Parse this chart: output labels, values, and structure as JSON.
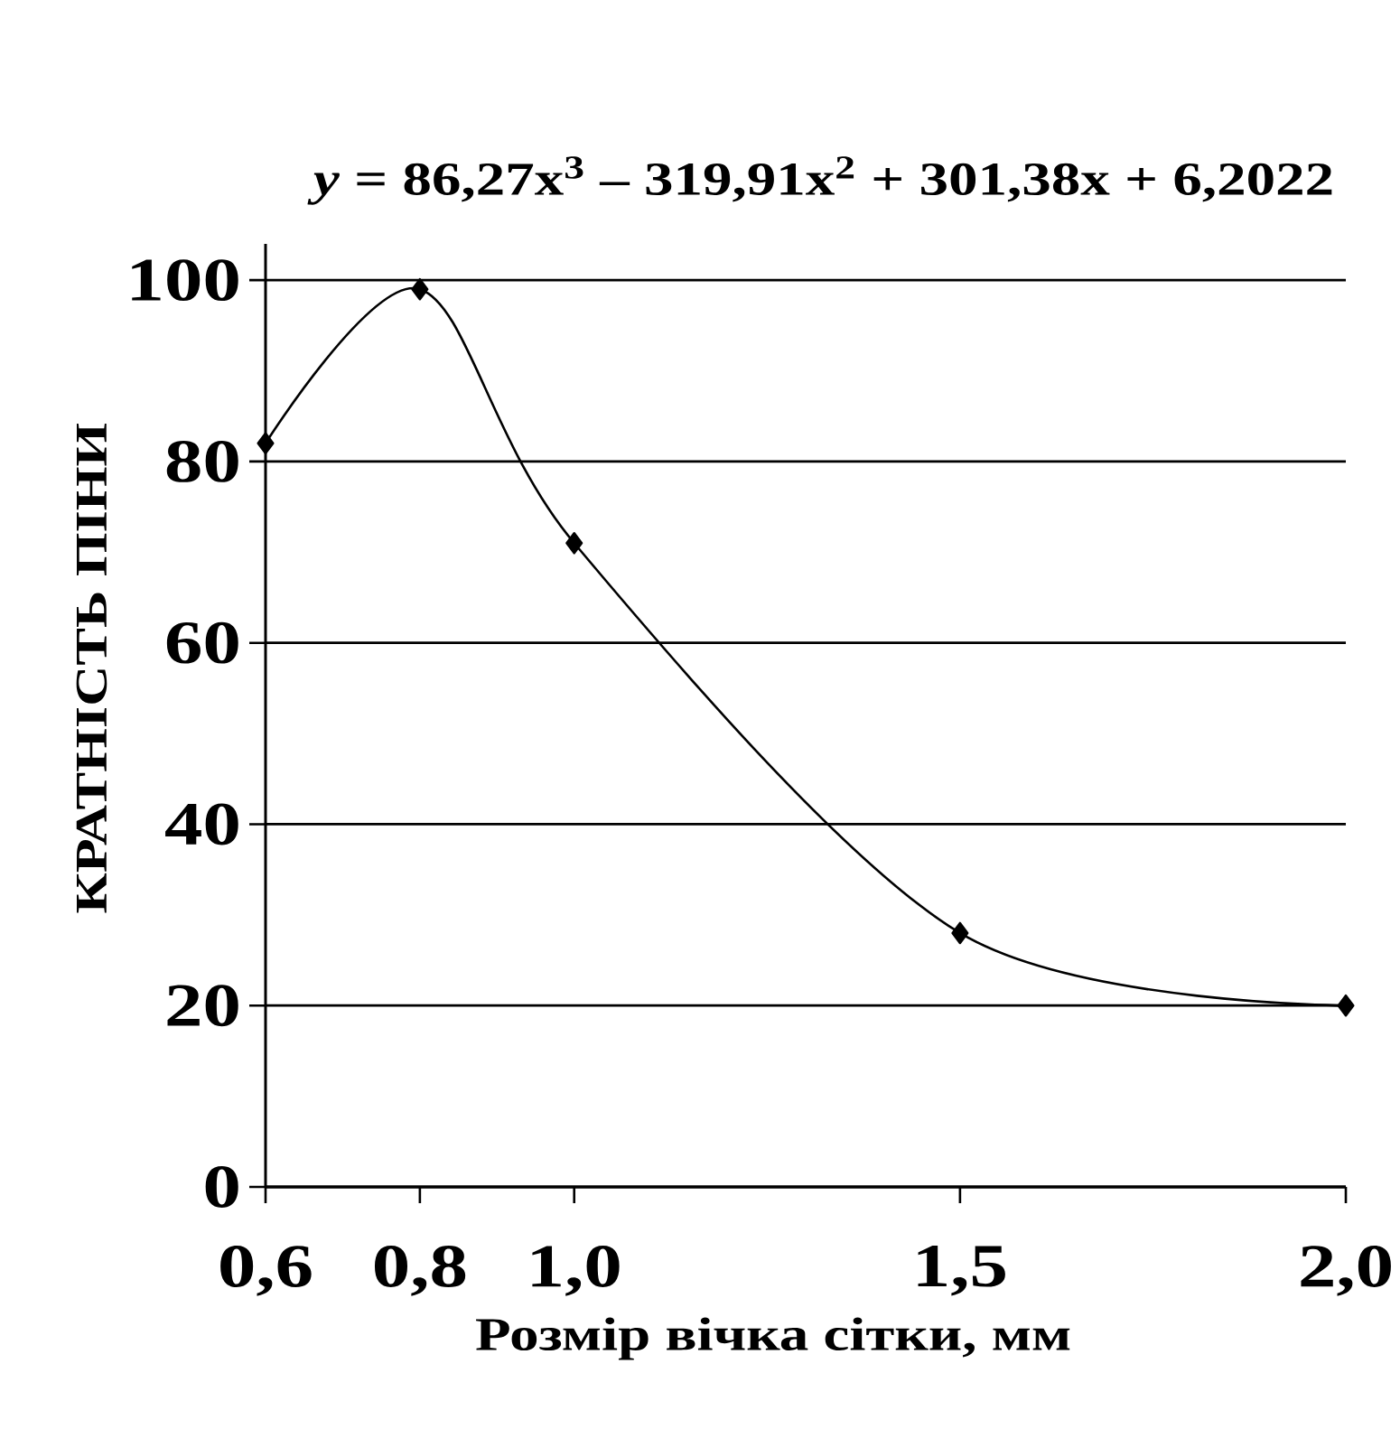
{
  "chart_data": {
    "type": "line",
    "annotations": [
      "*y* = 86,27x$^{3}$ – 319,91x$^{2}$ + 301,38x + 6,2022"
    ],
    "xlabel": "Розмір вічка сітки, мм",
    "ylabel": "КРАТНІСТЬ ПІНИ",
    "x": [
      0.6,
      0.8,
      1.0,
      1.5,
      2.0
    ],
    "series": [
      {
        "color": "#000000",
        "values": [
          82,
          99,
          71,
          28,
          20
        ]
      }
    ],
    "xlim": [
      0.6,
      2.0
    ],
    "xticks": [
      {
        "value": 0.6,
        "label": "0,6"
      },
      {
        "value": 0.8,
        "label": "0,8"
      },
      {
        "value": 1.0,
        "label": "1,0"
      },
      {
        "value": 1.5,
        "label": "1,5"
      },
      {
        "value": 2.0,
        "label": "2,0"
      }
    ],
    "ylim": [
      0,
      104
    ],
    "yticks": [
      0,
      20,
      40,
      60,
      80,
      100
    ],
    "grid": "y",
    "marker": "diamond",
    "line_style": "solid"
  }
}
